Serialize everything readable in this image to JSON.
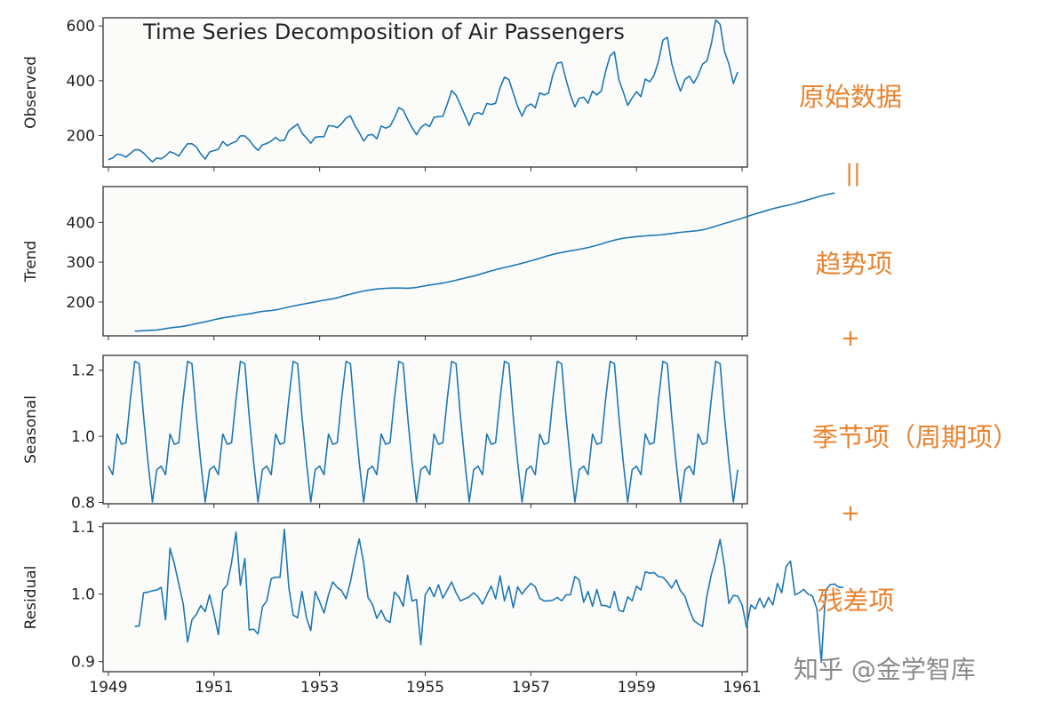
{
  "chart_data": {
    "type": "line",
    "title": "Time Series Decomposition of Air Passengers",
    "x_start": 1949,
    "x_step_months": 1,
    "xlim": [
      1948.9,
      1961.1
    ],
    "xticks": [
      "1949",
      "1951",
      "1953",
      "1955",
      "1957",
      "1959",
      "1961"
    ],
    "line_color": "#1f77b4",
    "panels": [
      {
        "name": "observed",
        "ylabel": "Observed",
        "ylim": [
          85,
          630
        ],
        "yticks": [
          "200",
          "400",
          "600"
        ],
        "values": [
          112,
          118,
          132,
          129,
          121,
          135,
          148,
          148,
          136,
          119,
          104,
          118,
          115,
          126,
          141,
          135,
          125,
          149,
          170,
          170,
          158,
          133,
          114,
          140,
          145,
          150,
          178,
          163,
          172,
          178,
          199,
          199,
          184,
          162,
          146,
          166,
          171,
          180,
          193,
          181,
          183,
          218,
          230,
          242,
          209,
          191,
          172,
          194,
          196,
          196,
          236,
          235,
          229,
          243,
          264,
          272,
          237,
          211,
          180,
          201,
          204,
          188,
          235,
          227,
          234,
          264,
          302,
          293,
          259,
          229,
          203,
          229,
          242,
          233,
          267,
          269,
          270,
          315,
          364,
          347,
          312,
          274,
          237,
          278,
          284,
          277,
          317,
          313,
          318,
          374,
          413,
          405,
          355,
          306,
          271,
          306,
          315,
          301,
          356,
          348,
          355,
          422,
          465,
          467,
          404,
          347,
          305,
          336,
          340,
          318,
          362,
          348,
          363,
          435,
          491,
          505,
          404,
          359,
          310,
          337,
          360,
          342,
          406,
          396,
          420,
          472,
          548,
          559,
          463,
          407,
          362,
          405,
          417,
          391,
          419,
          461,
          472,
          535,
          622,
          606,
          508,
          461,
          390,
          432
        ]
      },
      {
        "name": "trend",
        "ylabel": "Trend",
        "ylim": [
          115,
          490
        ],
        "yticks": [
          "200",
          "300",
          "400"
        ],
        "start_offset": 6,
        "values": [
          126.8,
          127.2,
          127.9,
          128.6,
          129.0,
          129.8,
          131.3,
          133.1,
          134.9,
          136.4,
          137.4,
          138.8,
          140.9,
          143.2,
          145.7,
          148.0,
          150.3,
          152.8,
          155.5,
          157.9,
          160.1,
          162.0,
          163.4,
          165.3,
          167.3,
          168.8,
          170.3,
          172.3,
          174.5,
          176.3,
          177.8,
          178.7,
          180.1,
          182.1,
          185.0,
          187.5,
          189.7,
          192.0,
          194.3,
          196.3,
          198.3,
          200.2,
          202.3,
          204.5,
          206.2,
          208.0,
          210.5,
          213.8,
          217.0,
          219.9,
          222.6,
          225.3,
          227.5,
          229.5,
          231.3,
          232.6,
          233.6,
          234.4,
          234.9,
          235.1,
          235.0,
          234.8,
          234.7,
          235.3,
          236.6,
          238.6,
          240.7,
          242.6,
          244.2,
          245.8,
          247.7,
          249.8,
          252.2,
          254.8,
          257.5,
          260.2,
          262.7,
          265.3,
          268.3,
          271.6,
          275.0,
          278.2,
          281.3,
          284.1,
          286.6,
          289.1,
          291.7,
          294.5,
          297.4,
          300.4,
          303.4,
          306.6,
          309.9,
          313.4,
          316.6,
          319.5,
          322.1,
          324.4,
          326.6,
          328.6,
          330.5,
          332.5,
          334.6,
          336.9,
          339.5,
          342.5,
          345.9,
          349.4,
          352.6,
          355.5,
          358.0,
          360.1,
          361.7,
          363.1,
          364.3,
          365.3,
          366.2,
          366.9,
          367.6,
          368.4,
          369.4,
          370.7,
          372.2,
          373.6,
          375.0,
          376.2,
          377.2,
          378.1,
          379.4,
          381.3,
          383.9,
          387.0,
          390.5,
          394.0,
          397.4,
          400.6,
          403.8,
          407.1,
          410.5,
          414.1,
          417.8,
          421.4,
          424.7,
          428.0,
          431.3,
          434.4,
          437.2,
          439.7,
          442.0,
          444.5,
          447.3,
          450.4,
          453.7,
          457.0,
          460.2,
          463.4,
          466.5,
          469.2,
          471.6,
          474.0
        ]
      },
      {
        "name": "seasonal",
        "ylabel": "Seasonal",
        "ylim": [
          0.796,
          1.245
        ],
        "yticks": [
          "0.8",
          "1.0",
          "1.2"
        ],
        "cycle": [
          0.91,
          0.884,
          1.007,
          0.976,
          0.981,
          1.113,
          1.227,
          1.22,
          1.06,
          0.922,
          0.801,
          0.899
        ]
      },
      {
        "name": "residual",
        "ylabel": "Residual",
        "ylim": [
          0.885,
          1.105
        ],
        "yticks": [
          "0.9",
          "1.0",
          "1.1"
        ],
        "start_offset": 6,
        "values": [
          0.952,
          0.953,
          1.002,
          1.003,
          1.005,
          1.006,
          1.01,
          0.962,
          1.068,
          1.045,
          1.015,
          0.986,
          0.929,
          0.962,
          0.97,
          0.983,
          0.974,
          0.999,
          0.971,
          0.94,
          1.006,
          1.014,
          1.047,
          1.092,
          1.013,
          1.053,
          0.947,
          0.948,
          0.941,
          0.981,
          0.99,
          1.023,
          1.025,
          1.025,
          1.096,
          1.01,
          0.969,
          0.965,
          1.004,
          0.965,
          0.946,
          1.004,
          0.989,
          0.972,
          0.999,
          1.018,
          1.01,
          1.005,
          0.993,
          1.018,
          1.052,
          1.082,
          1.046,
          0.995,
          0.985,
          0.964,
          0.976,
          0.962,
          0.958,
          1.003,
          0.996,
          0.982,
          1.028,
          0.99,
          0.992,
          0.925,
          0.999,
          1.01,
          0.996,
          1.014,
          0.994,
          1.006,
          1.018,
          1.002,
          0.99,
          0.993,
          0.996,
          1.002,
          0.996,
          0.985,
          0.999,
          1.012,
          0.993,
          1.027,
          0.99,
          1.012,
          0.98,
          1.011,
          1.0,
          1.009,
          1.016,
          1.011,
          0.994,
          0.99,
          0.99,
          0.991,
          0.995,
          0.99,
          0.999,
          0.999,
          1.026,
          1.021,
          0.988,
          1.004,
          0.982,
          1.007,
          0.983,
          0.983,
          0.98,
          1.004,
          0.976,
          0.974,
          0.996,
          0.99,
          1.012,
          1.006,
          1.033,
          1.031,
          1.032,
          1.026,
          1.025,
          1.018,
          1.009,
          1.021,
          1.005,
          0.997,
          0.977,
          0.961,
          0.956,
          0.952,
          0.997,
          1.029,
          1.052,
          1.081,
          1.041,
          0.986,
          0.998,
          0.997,
          0.984,
          0.951,
          0.984,
          0.978,
          0.994,
          0.98,
          0.995,
          0.984,
          1.016,
          1.002,
          1.041,
          1.049,
          0.999,
          1.002,
          1.007,
          1.0,
          0.997,
          0.978,
          0.899,
          1.006,
          1.014,
          1.015,
          1.01,
          1.01
        ]
      }
    ]
  },
  "annotations": {
    "observed": "原始数据",
    "equals": "||",
    "trend": "趋势项",
    "plus1": "+",
    "seasonal": "季节项（周期项）",
    "plus2": "+",
    "residual": "残差项"
  },
  "watermark": "知乎 @金学智库"
}
